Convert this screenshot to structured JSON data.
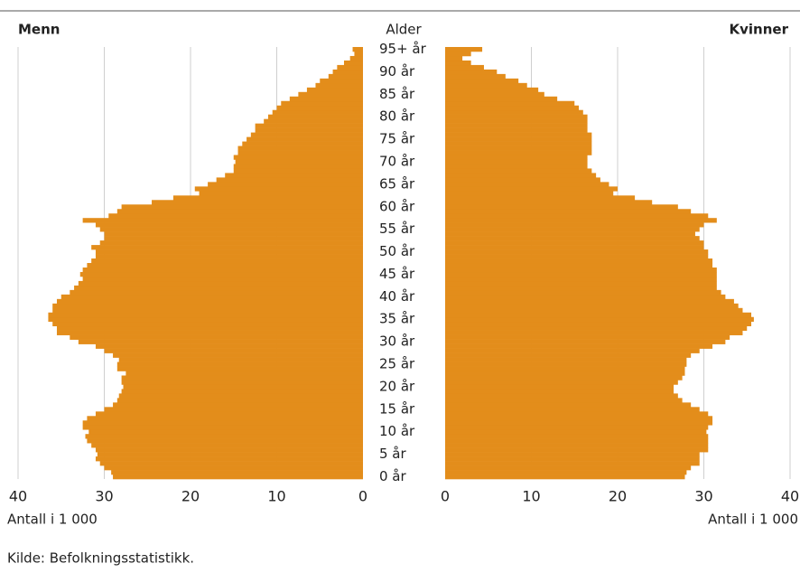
{
  "chart_data": {
    "type": "population_pyramid",
    "categories": [
      "0 år",
      null,
      null,
      null,
      null,
      "5 år",
      null,
      null,
      null,
      null,
      "10 år",
      null,
      null,
      null,
      null,
      "15 år",
      null,
      null,
      null,
      null,
      "20 år",
      null,
      null,
      null,
      null,
      "25 år",
      null,
      null,
      null,
      null,
      "30 år",
      null,
      null,
      null,
      null,
      "35 år",
      null,
      null,
      null,
      null,
      "40 år",
      null,
      null,
      null,
      null,
      "45 år",
      null,
      null,
      null,
      null,
      "50 år",
      null,
      null,
      null,
      null,
      "55 år",
      null,
      null,
      null,
      null,
      "60 år",
      null,
      null,
      null,
      null,
      "65 år",
      null,
      null,
      null,
      null,
      "70 år",
      null,
      null,
      null,
      null,
      "75 år",
      null,
      null,
      null,
      null,
      "80 år",
      null,
      null,
      null,
      null,
      "85 år",
      null,
      null,
      null,
      null,
      "90 år",
      null,
      null,
      null,
      null,
      "95+ år"
    ],
    "series": [
      {
        "name": "Menn",
        "color": "#e38d1b",
        "values": [
          29,
          29.2,
          30,
          30.5,
          31,
          30.8,
          31,
          31.5,
          32,
          32.2,
          31.8,
          32.5,
          32.5,
          32,
          31,
          30,
          29,
          28.5,
          28.3,
          28,
          27.8,
          28,
          28,
          27.5,
          28.5,
          28.5,
          28.3,
          29,
          30,
          31,
          33,
          34,
          35.5,
          35.5,
          36,
          36.5,
          36.5,
          36,
          36,
          35.5,
          35,
          34,
          33.5,
          33,
          32.5,
          32.8,
          32.5,
          32,
          31.5,
          31,
          31,
          31.5,
          30.5,
          30,
          30,
          30.5,
          31,
          32.5,
          29.5,
          28.5,
          28,
          24.5,
          22,
          19,
          19.5,
          18,
          17,
          16,
          15,
          15,
          14.8,
          15,
          14.5,
          14.5,
          14,
          13.5,
          13,
          12.5,
          12.5,
          11.5,
          11,
          10.5,
          10,
          9.5,
          8.5,
          7.5,
          6.5,
          5.5,
          5,
          4,
          3.5,
          3,
          2.2,
          1.5,
          1,
          1.2
        ]
      },
      {
        "name": "Kvinner",
        "color": "#e38d1b",
        "values": [
          27.8,
          28,
          28.5,
          29.5,
          29.5,
          29.5,
          30.5,
          30.5,
          30.5,
          30.5,
          30.3,
          30.5,
          31,
          31,
          30.5,
          29.5,
          28.5,
          27.5,
          27,
          26.5,
          26.5,
          27,
          27.5,
          27.8,
          27.8,
          28,
          28,
          28.5,
          29.5,
          31,
          32.5,
          33,
          34.5,
          35,
          35.5,
          35.8,
          35.5,
          34.5,
          34,
          33.5,
          32.5,
          32,
          31.5,
          31.5,
          31.5,
          31.5,
          31.5,
          31,
          31,
          30.5,
          30.5,
          30,
          30,
          29.5,
          29,
          29.5,
          30,
          31.5,
          30.5,
          28.5,
          27,
          24,
          22,
          19.5,
          20,
          19,
          18,
          17.5,
          17,
          16.5,
          16.5,
          16.5,
          17,
          17,
          17,
          17,
          17,
          16.5,
          16.5,
          16.5,
          16.5,
          16,
          15.5,
          15,
          13,
          11.5,
          10.8,
          9.5,
          8.5,
          7,
          6,
          4.5,
          3,
          2,
          3,
          4.3
        ]
      }
    ],
    "y_label": "Alder",
    "x_label": "Antall i 1 000",
    "xlim": [
      0,
      40
    ],
    "xticks": [
      0,
      10,
      20,
      30,
      40
    ],
    "grid": true,
    "source": "Kilde: Befolkningsstatistikk."
  }
}
